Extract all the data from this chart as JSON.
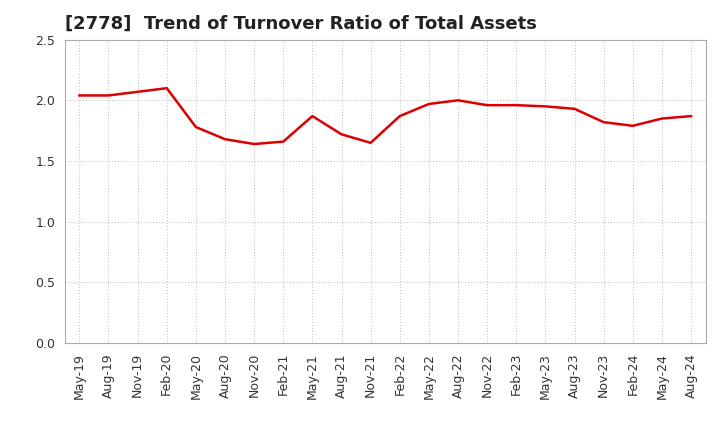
{
  "title": "[2778]  Trend of Turnover Ratio of Total Assets",
  "x_labels": [
    "May-19",
    "Aug-19",
    "Nov-19",
    "Feb-20",
    "May-20",
    "Aug-20",
    "Nov-20",
    "Feb-21",
    "May-21",
    "Aug-21",
    "Nov-21",
    "Feb-22",
    "May-22",
    "Aug-22",
    "Nov-22",
    "Feb-23",
    "May-23",
    "Aug-23",
    "Nov-23",
    "Feb-24",
    "May-24",
    "Aug-24"
  ],
  "values": [
    2.04,
    2.04,
    2.07,
    2.1,
    1.78,
    1.68,
    1.64,
    1.66,
    1.87,
    1.72,
    1.65,
    1.87,
    1.97,
    2.0,
    1.96,
    1.96,
    1.95,
    1.93,
    1.82,
    1.79,
    1.85,
    1.87
  ],
  "line_color": "#dd0000",
  "line_width": 1.8,
  "ylim": [
    0.0,
    2.5
  ],
  "yticks": [
    0.0,
    0.5,
    1.0,
    1.5,
    2.0,
    2.5
  ],
  "background_color": "#ffffff",
  "grid_color": "#bbbbbb",
  "title_fontsize": 13,
  "tick_fontsize": 9,
  "title_color": "#222222"
}
